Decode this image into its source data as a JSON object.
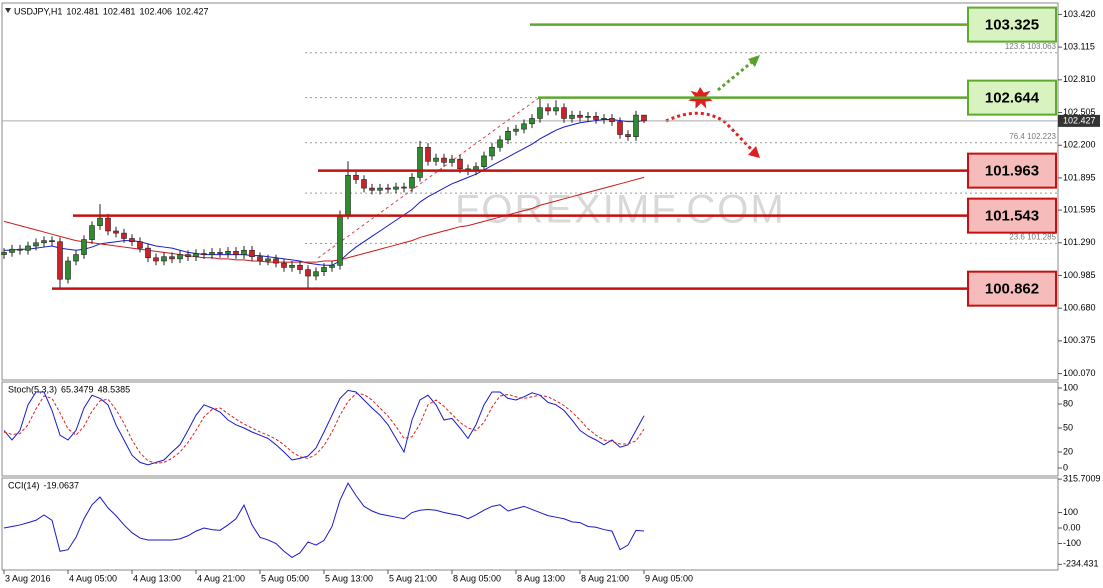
{
  "chart_data": [
    {
      "type": "candlestick",
      "title": "USDJPY,H1",
      "watermark": "FOREXIMF.COM",
      "categories": [
        "3 Aug 2016",
        null,
        null,
        null,
        null,
        null,
        null,
        null,
        "4 Aug 05:00",
        null,
        null,
        null,
        null,
        null,
        null,
        null,
        "4 Aug 13:00",
        null,
        null,
        null,
        null,
        null,
        null,
        null,
        "4 Aug 21:00",
        null,
        null,
        null,
        null,
        null,
        null,
        null,
        "5 Aug 05:00",
        null,
        null,
        null,
        null,
        null,
        null,
        null,
        "5 Aug 13:00",
        null,
        null,
        null,
        null,
        null,
        null,
        null,
        "5 Aug 21:00",
        null,
        null,
        null,
        null,
        null,
        null,
        null,
        "8 Aug 05:00",
        null,
        null,
        null,
        null,
        null,
        null,
        null,
        "8 Aug 13:00",
        null,
        null,
        null,
        null,
        null,
        null,
        null,
        "8 Aug 21:00",
        null,
        null,
        null,
        null,
        null,
        null,
        null,
        "9 Aug 05:00"
      ],
      "open": [
        101.18,
        101.2,
        101.23,
        101.22,
        101.26,
        101.29,
        101.31,
        101.3,
        100.95,
        101.12,
        101.18,
        101.32,
        101.45,
        101.52,
        101.4,
        101.38,
        101.33,
        101.3,
        101.24,
        101.15,
        101.12,
        101.16,
        101.14,
        101.18,
        101.16,
        101.19,
        101.18,
        101.2,
        101.19,
        101.21,
        101.18,
        101.22,
        101.16,
        101.12,
        101.14,
        101.1,
        101.06,
        101.08,
        101.04,
        100.98,
        101.02,
        101.06,
        101.08,
        101.55,
        101.92,
        101.88,
        101.8,
        101.78,
        101.8,
        101.79,
        101.81,
        101.8,
        101.9,
        102.18,
        102.05,
        102.08,
        102.04,
        102.07,
        101.98,
        101.96,
        102.0,
        102.1,
        102.18,
        102.25,
        102.33,
        102.35,
        102.4,
        102.45,
        102.55,
        102.52,
        102.55,
        102.45,
        102.48,
        102.46,
        102.47,
        102.44,
        102.45,
        102.42,
        102.3,
        102.28,
        102.481
      ],
      "high": [
        101.24,
        101.27,
        101.27,
        101.3,
        101.33,
        101.35,
        101.35,
        101.34,
        101.16,
        101.22,
        101.36,
        101.49,
        101.65,
        101.56,
        101.44,
        101.42,
        101.37,
        101.34,
        101.28,
        101.19,
        101.2,
        101.2,
        101.22,
        101.22,
        101.23,
        101.23,
        101.24,
        101.24,
        101.25,
        101.25,
        101.26,
        101.26,
        101.2,
        101.18,
        101.18,
        101.14,
        101.12,
        101.12,
        101.08,
        101.06,
        101.1,
        101.12,
        101.59,
        102.05,
        101.96,
        101.92,
        101.84,
        101.84,
        101.84,
        101.85,
        101.85,
        101.94,
        102.24,
        102.22,
        102.12,
        102.12,
        102.11,
        102.11,
        102.02,
        102.04,
        102.14,
        102.22,
        102.29,
        102.37,
        102.39,
        102.44,
        102.49,
        102.64,
        102.59,
        102.62,
        102.59,
        102.52,
        102.52,
        102.51,
        102.51,
        102.49,
        102.49,
        102.46,
        102.34,
        102.52,
        102.481
      ],
      "low": [
        101.14,
        101.16,
        101.18,
        101.18,
        101.22,
        101.25,
        101.26,
        100.86,
        100.91,
        101.08,
        101.14,
        101.28,
        101.41,
        101.36,
        101.34,
        101.29,
        101.26,
        101.2,
        101.11,
        101.08,
        101.08,
        101.1,
        101.1,
        101.12,
        101.12,
        101.14,
        101.14,
        101.15,
        101.15,
        101.14,
        101.14,
        101.12,
        101.08,
        101.08,
        101.06,
        101.02,
        101.02,
        101.0,
        100.86,
        100.94,
        100.98,
        101.02,
        101.04,
        101.51,
        101.84,
        101.76,
        101.74,
        101.74,
        101.75,
        101.75,
        101.76,
        101.76,
        101.86,
        102.01,
        102.01,
        102.0,
        102.0,
        101.94,
        101.92,
        101.92,
        101.96,
        102.06,
        102.14,
        102.21,
        102.29,
        102.31,
        102.36,
        102.41,
        102.48,
        102.48,
        102.41,
        102.41,
        102.42,
        102.42,
        102.4,
        102.4,
        102.38,
        102.26,
        102.24,
        102.24,
        102.406
      ],
      "close": [
        101.2,
        101.23,
        101.22,
        101.26,
        101.29,
        101.31,
        101.3,
        100.95,
        101.12,
        101.18,
        101.32,
        101.45,
        101.52,
        101.4,
        101.38,
        101.33,
        101.3,
        101.24,
        101.15,
        101.12,
        101.16,
        101.14,
        101.18,
        101.16,
        101.19,
        101.18,
        101.2,
        101.19,
        101.21,
        101.18,
        101.22,
        101.16,
        101.12,
        101.14,
        101.1,
        101.06,
        101.08,
        101.04,
        100.98,
        101.02,
        101.06,
        101.08,
        101.55,
        101.92,
        101.88,
        101.8,
        101.78,
        101.8,
        101.79,
        101.81,
        101.8,
        101.9,
        102.18,
        102.05,
        102.08,
        102.04,
        102.07,
        101.98,
        101.96,
        102.0,
        102.1,
        102.18,
        102.25,
        102.33,
        102.35,
        102.4,
        102.45,
        102.55,
        102.52,
        102.55,
        102.45,
        102.48,
        102.46,
        102.47,
        102.44,
        102.45,
        102.42,
        102.3,
        102.28,
        102.481,
        102.427
      ],
      "up_color": "#2e8b2e",
      "down_color": "#d0202a",
      "overlays": [
        {
          "color": "#1a1acc",
          "values": [
            101.22,
            101.22,
            101.23,
            101.23,
            101.24,
            101.25,
            101.26,
            101.24,
            101.23,
            101.22,
            101.23,
            101.25,
            101.28,
            101.29,
            101.3,
            101.31,
            101.31,
            101.3,
            101.28,
            101.26,
            101.25,
            101.24,
            101.22,
            101.2,
            101.19,
            101.18,
            101.18,
            101.18,
            101.18,
            101.18,
            101.18,
            101.17,
            101.17,
            101.16,
            101.15,
            101.14,
            101.13,
            101.12,
            101.1,
            101.09,
            101.08,
            101.08,
            101.12,
            101.19,
            101.25,
            101.3,
            101.35,
            101.4,
            101.45,
            101.5,
            101.55,
            101.6,
            101.67,
            101.72,
            101.76,
            101.8,
            101.84,
            101.87,
            101.9,
            101.93,
            101.97,
            102.01,
            102.05,
            102.09,
            102.13,
            102.17,
            102.21,
            102.26,
            102.3,
            102.34,
            102.37,
            102.39,
            102.41,
            102.42,
            102.43,
            102.44,
            102.44,
            102.43,
            102.42,
            102.42,
            102.43
          ]
        },
        {
          "color": "#cc1a1a",
          "values": [
            101.49,
            101.47,
            101.45,
            101.43,
            101.41,
            101.39,
            101.37,
            101.35,
            101.33,
            101.31,
            101.3,
            101.29,
            101.28,
            101.27,
            101.26,
            101.25,
            101.24,
            101.23,
            101.22,
            101.21,
            101.2,
            101.19,
            101.18,
            101.17,
            101.16,
            101.15,
            101.15,
            101.14,
            101.14,
            101.13,
            101.13,
            101.12,
            101.12,
            101.11,
            101.11,
            101.11,
            101.11,
            101.11,
            101.11,
            101.11,
            101.12,
            101.12,
            101.13,
            101.15,
            101.17,
            101.19,
            101.21,
            101.23,
            101.25,
            101.27,
            101.29,
            101.31,
            101.34,
            101.36,
            101.38,
            101.4,
            101.42,
            101.44,
            101.45,
            101.47,
            101.49,
            101.51,
            101.53,
            101.55,
            101.57,
            101.59,
            101.61,
            101.64,
            101.66,
            101.68,
            101.7,
            101.72,
            101.74,
            101.76,
            101.78,
            101.8,
            101.82,
            101.84,
            101.86,
            101.88,
            101.9
          ]
        }
      ],
      "levels": [
        {
          "value": 103.325,
          "color": "green"
        },
        {
          "value": 102.644,
          "color": "green"
        },
        {
          "value": 101.963,
          "color": "red"
        },
        {
          "value": 101.543,
          "color": "red"
        },
        {
          "value": 100.862,
          "color": "red"
        }
      ],
      "fib_levels": [
        {
          "value": 103.063,
          "label": "123.6 103.063"
        },
        102.644,
        {
          "value": 102.223,
          "label": "76.4 102.223"
        },
        101.753,
        {
          "value": 101.285,
          "label": "23.6 101.285"
        }
      ],
      "ylim": [
        100.01,
        103.48
      ],
      "yticks": [
        {
          "value": 103.42,
          "label": "103.420"
        },
        103.115,
        {
          "value": 102.81,
          "label": "102.810"
        },
        102.505,
        {
          "value": 102.2,
          "label": "102.200"
        },
        101.895,
        101.595,
        {
          "value": 101.29,
          "label": "101.290"
        },
        100.985,
        {
          "value": 100.68,
          "label": "100.680"
        },
        100.375,
        {
          "value": 100.07,
          "label": "100.070"
        }
      ]
    },
    {
      "type": "line",
      "title": "Stoch(5,3,3)",
      "series": [
        {
          "color": "#1a1acc",
          "values": [
            47,
            35,
            47,
            79,
            95,
            95,
            72,
            41,
            35,
            47,
            75,
            91,
            87,
            79,
            54,
            35,
            16,
            7,
            4,
            7,
            10,
            20,
            29,
            47,
            66,
            79,
            75,
            70,
            60,
            54,
            50,
            45,
            41,
            37,
            29,
            20,
            10,
            12,
            15,
            25,
            45,
            66,
            87,
            97,
            95,
            85,
            75,
            66,
            54,
            37,
            20,
            60,
            85,
            91,
            79,
            60,
            62,
            50,
            37,
            54,
            79,
            95,
            95,
            87,
            85,
            89,
            94,
            91,
            82,
            79,
            72,
            60,
            47,
            40,
            35,
            29,
            35,
            26,
            29,
            47,
            65.3479
          ]
        },
        {
          "color": "#dd2222",
          "dashed": true,
          "values": [
            45,
            42,
            43,
            54,
            74,
            90,
            87,
            69,
            49,
            41,
            52,
            71,
            84,
            86,
            73,
            56,
            35,
            19,
            9,
            6,
            7,
            12,
            20,
            32,
            47,
            64,
            73,
            75,
            68,
            61,
            55,
            50,
            45,
            41,
            36,
            29,
            20,
            14,
            12,
            17,
            28,
            45,
            66,
            83,
            93,
            92,
            85,
            75,
            65,
            52,
            37,
            39,
            55,
            79,
            85,
            77,
            67,
            57,
            50,
            47,
            57,
            76,
            90,
            92,
            89,
            87,
            89,
            91,
            89,
            84,
            78,
            70,
            60,
            49,
            41,
            35,
            33,
            30,
            30,
            34,
            48.5385
          ]
        }
      ],
      "ylim": [
        -10,
        107.5
      ],
      "yticks": [
        100,
        80,
        50,
        20,
        0
      ]
    },
    {
      "type": "line",
      "title": "CCI(14)",
      "series": [
        {
          "color": "#1a1acc",
          "values": [
            0,
            10,
            20,
            35,
            50,
            84,
            50,
            -150,
            -140,
            -60,
            60,
            150,
            200,
            130,
            80,
            20,
            -30,
            -65,
            -77,
            -77,
            -77,
            -77,
            -70,
            -50,
            -20,
            0,
            -10,
            -15,
            20,
            60,
            148,
            20,
            -60,
            -77,
            -100,
            -150,
            -190,
            -160,
            -90,
            -110,
            -80,
            10,
            180,
            290,
            210,
            140,
            110,
            90,
            80,
            70,
            60,
            100,
            115,
            120,
            115,
            100,
            90,
            80,
            60,
            85,
            115,
            140,
            150,
            110,
            125,
            140,
            120,
            100,
            80,
            70,
            60,
            40,
            35,
            10,
            5,
            -10,
            -20,
            -140,
            -110,
            -15,
            -19.0637
          ]
        }
      ],
      "ylim": [
        -271,
        323
      ],
      "yticks": [
        315.7009,
        100,
        {
          "value": 0,
          "label": "0.00"
        },
        -100,
        -234.431
      ]
    }
  ]
}
